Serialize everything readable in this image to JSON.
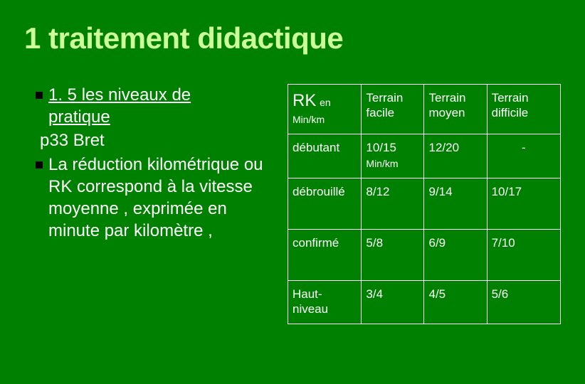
{
  "colors": {
    "background": "#008000",
    "title": "#ccff99",
    "text": "#ffffff",
    "bullet": "#000000",
    "table_border": "#ffffff"
  },
  "title": "1 traitement didactique",
  "left": {
    "bullet1_line1": "1. 5 les niveaux  de",
    "bullet1_line2": "pratique",
    "plain": "p33 Bret",
    "bullet2": "La réduction kilométrique ou RK correspond à la vitesse moyenne , exprimée en minute par kilomètre ,"
  },
  "table": {
    "type": "table",
    "col_widths_pct": [
      27,
      23,
      23,
      27
    ],
    "header": {
      "rk": "RK",
      "rk_en": "en",
      "rk_sub": "Min/km",
      "c2": "Terrain facile",
      "c3": "Terrain moyen",
      "c4": "Terrain difficile"
    },
    "rows": [
      {
        "label": "débutant",
        "c2": "10/15",
        "c2_sub": "Min/km",
        "c3": "12/20",
        "c4": "-",
        "c4_center": true
      },
      {
        "label": "débrouillé",
        "c2": "8/12",
        "c2_sub": "",
        "c3": "9/14",
        "c4": "10/17",
        "c4_center": false
      },
      {
        "label": "confirmé",
        "c2": "5/8",
        "c2_sub": "",
        "c3": "6/9",
        "c4": "7/10",
        "c4_center": false
      },
      {
        "label": "Haut-niveau",
        "c2": "3/4",
        "c2_sub": "",
        "c3": "4/5",
        "c4": "5/6",
        "c4_center": false
      }
    ],
    "fontsize_cell": 17,
    "fontsize_sub": 14,
    "fontsize_rk": 24
  }
}
